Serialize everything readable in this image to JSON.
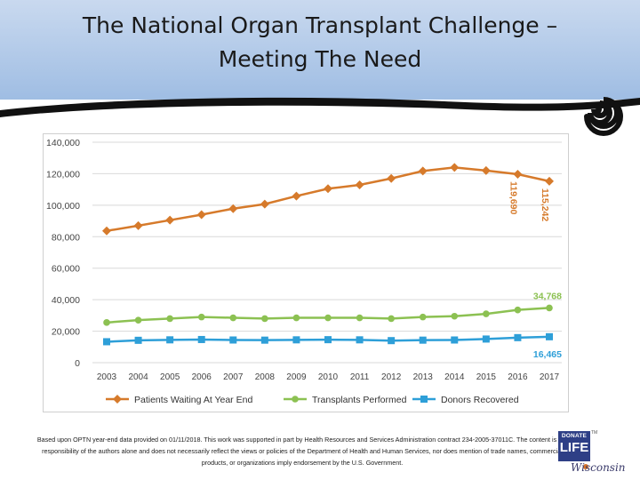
{
  "slide": {
    "title_line1": "The National Organ Transplant Challenge –",
    "title_line2": "Meeting The Need",
    "footnote": "Based upon OPTN year-end data provided on 01/11/2018. This work was supported in part by Health Resources and Services Administration contract 234-2005-37011C. The content is the responsibility of the authors alone and does not necessarily reflect the views or policies of the Department of Health and Human Services, nor does mention of trade names, commercial products, or organizations imply endorsement by the U.S. Government.",
    "logo": {
      "top": "DONATE",
      "main": "LIFE",
      "sub": "Wisconsin",
      "tm": "TM"
    }
  },
  "colors": {
    "header": "#a9c3e6",
    "waiting": "#d67a2b",
    "transplants": "#8cc152",
    "donors": "#2e9fd8",
    "grid": "#d9d9d9"
  },
  "chart_data": {
    "type": "line",
    "title": "",
    "xlabel": "",
    "ylabel": "",
    "ylim": [
      0,
      140000
    ],
    "yticks": [
      0,
      20000,
      40000,
      60000,
      80000,
      100000,
      120000,
      140000
    ],
    "ytick_labels": [
      "0",
      "20,000",
      "40,000",
      "60,000",
      "80,000",
      "100,000",
      "120,000",
      "140,000"
    ],
    "categories": [
      "2003",
      "2004",
      "2005",
      "2006",
      "2007",
      "2008",
      "2009",
      "2010",
      "2011",
      "2012",
      "2013",
      "2014",
      "2015",
      "2016",
      "2017"
    ],
    "grid": "horizontal",
    "legend_position": "bottom",
    "series": [
      {
        "name": "Patients Waiting At Year End",
        "color": "#d67a2b",
        "marker": "diamond",
        "values": [
          83700,
          87000,
          90500,
          94000,
          97800,
          100700,
          105800,
          110500,
          112900,
          117000,
          121700,
          124000,
          122000,
          119690,
          115242
        ]
      },
      {
        "name": "Transplants Performed",
        "color": "#8cc152",
        "marker": "circle",
        "values": [
          25500,
          27000,
          28000,
          29000,
          28500,
          28000,
          28500,
          28500,
          28500,
          28000,
          29000,
          29500,
          31000,
          33500,
          34768
        ]
      },
      {
        "name": "Donors Recovered",
        "color": "#2e9fd8",
        "marker": "square",
        "values": [
          13300,
          14200,
          14500,
          14700,
          14400,
          14300,
          14500,
          14600,
          14500,
          14000,
          14300,
          14400,
          15000,
          15900,
          16465
        ]
      }
    ],
    "annotations": [
      {
        "text": "119,690",
        "series": 0,
        "point": 13,
        "rotated": true
      },
      {
        "text": "115,242",
        "series": 0,
        "point": 14,
        "rotated": true
      },
      {
        "text": "34,768",
        "series": 1,
        "point": 14,
        "rotated": false
      },
      {
        "text": "16,465",
        "series": 2,
        "point": 14,
        "rotated": false
      }
    ]
  }
}
